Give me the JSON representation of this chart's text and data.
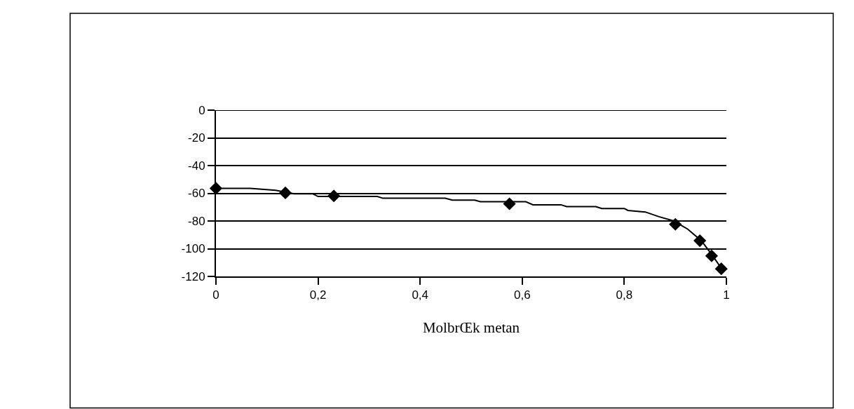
{
  "chart_data": {
    "type": "line",
    "xlabel": "MolbrŒk metan",
    "xlim": [
      0,
      1
    ],
    "ylim": [
      -120,
      0
    ],
    "xticks": [
      0,
      {
        "value": 0.2,
        "label": "0,2"
      },
      {
        "value": 0.4,
        "label": "0,4"
      },
      {
        "value": 0.6,
        "label": "0,6"
      },
      {
        "value": 0.8,
        "label": "0,8"
      },
      1
    ],
    "yticks": [
      -120,
      -100,
      -80,
      -60,
      -40,
      -20,
      0
    ],
    "grid": "y",
    "series": [
      {
        "color": "#000000",
        "marker": "none",
        "line_style": "solid",
        "x": [
          0,
          0.067,
          0.117,
          0.153,
          0.19,
          0.2,
          0.316,
          0.327,
          0.449,
          0.463,
          0.507,
          0.518,
          0.607,
          0.621,
          0.676,
          0.687,
          0.744,
          0.756,
          0.8,
          0.807,
          0.841,
          0.868,
          0.896,
          0.924,
          0.951,
          0.973,
          0.992
        ],
        "values": [
          -56.4,
          -56.4,
          -57.9,
          -60.4,
          -60.4,
          -62.3,
          -62.3,
          -63.6,
          -63.6,
          -64.9,
          -64.9,
          -66.1,
          -66.1,
          -68.3,
          -68.3,
          -69.6,
          -69.6,
          -71,
          -71,
          -72.4,
          -73.5,
          -76.9,
          -79.9,
          -85.8,
          -94.3,
          -105,
          -115.2
        ]
      },
      {
        "type": "scatter",
        "color": "#000000",
        "marker": "diamond",
        "x": [
          0,
          0.136,
          0.231,
          0.575,
          0.9,
          0.948,
          0.971,
          0.99
        ],
        "values": [
          -56.4,
          -59.7,
          -61.9,
          -67.6,
          -82.4,
          -94.2,
          -105.2,
          -114.5
        ]
      }
    ]
  }
}
